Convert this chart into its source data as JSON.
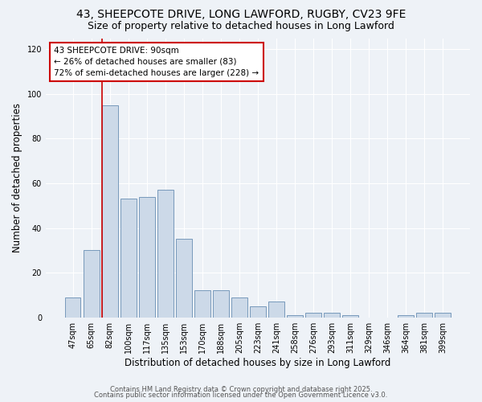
{
  "title_line1": "43, SHEEPCOTE DRIVE, LONG LAWFORD, RUGBY, CV23 9FE",
  "title_line2": "Size of property relative to detached houses in Long Lawford",
  "xlabel": "Distribution of detached houses by size in Long Lawford",
  "ylabel": "Number of detached properties",
  "categories": [
    "47sqm",
    "65sqm",
    "82sqm",
    "100sqm",
    "117sqm",
    "135sqm",
    "153sqm",
    "170sqm",
    "188sqm",
    "205sqm",
    "223sqm",
    "241sqm",
    "258sqm",
    "276sqm",
    "293sqm",
    "311sqm",
    "329sqm",
    "346sqm",
    "364sqm",
    "381sqm",
    "399sqm"
  ],
  "values": [
    9,
    30,
    95,
    53,
    54,
    57,
    35,
    12,
    12,
    9,
    5,
    7,
    1,
    2,
    2,
    1,
    0,
    0,
    1,
    2,
    2
  ],
  "bar_color": "#ccd9e8",
  "bar_edge_color": "#7799bb",
  "reference_line_label": "43 SHEEPCOTE DRIVE: 90sqm",
  "annotation_line2": "← 26% of detached houses are smaller (83)",
  "annotation_line3": "72% of semi-detached houses are larger (228) →",
  "ref_line_color": "#cc0000",
  "ylim": [
    0,
    125
  ],
  "background_color": "#eef2f7",
  "footer_line1": "Contains HM Land Registry data © Crown copyright and database right 2025.",
  "footer_line2": "Contains public sector information licensed under the Open Government Licence v3.0.",
  "title_fontsize": 10,
  "subtitle_fontsize": 9,
  "axis_label_fontsize": 8.5,
  "tick_fontsize": 7,
  "annotation_fontsize": 7.5,
  "footer_fontsize": 6
}
